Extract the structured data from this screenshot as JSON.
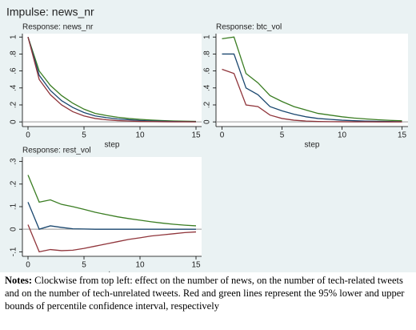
{
  "title": "Impulse: news_nr",
  "chart_data": [
    {
      "type": "line",
      "title": "Response: news_nr",
      "xlabel": "step",
      "x": [
        0,
        1,
        2,
        3,
        4,
        5,
        6,
        7,
        8,
        9,
        10,
        11,
        12,
        13,
        14,
        15
      ],
      "xlim": [
        -0.5,
        15.5
      ],
      "xticks": [
        0,
        5,
        10,
        15
      ],
      "ylim": [
        -0.055,
        1.04
      ],
      "yticks": [
        0,
        {
          "value": 0.2,
          "label": ".2"
        },
        {
          "value": 0.4,
          "label": ".4"
        },
        {
          "value": 0.6,
          "label": ".6"
        },
        {
          "value": 0.8,
          "label": ".8"
        },
        1
      ],
      "series": [
        {
          "color": "#3a7d22",
          "values": [
            1,
            0.6,
            0.43,
            0.31,
            0.22,
            0.15,
            0.1,
            0.075,
            0.055,
            0.04,
            0.03,
            0.022,
            0.016,
            0.011,
            0.008,
            0.006
          ]
        },
        {
          "color": "#1a476f",
          "values": [
            1,
            0.55,
            0.37,
            0.25,
            0.17,
            0.11,
            0.07,
            0.05,
            0.035,
            0.025,
            0.017,
            0.011,
            0.008,
            0.005,
            0.003,
            0.002
          ]
        },
        {
          "color": "#90353b",
          "values": [
            1,
            0.5,
            0.32,
            0.2,
            0.12,
            0.07,
            0.04,
            0.025,
            0.015,
            0.01,
            0.006,
            0.004,
            0.002,
            0.001,
            0.001,
            0.0005
          ]
        }
      ]
    },
    {
      "type": "line",
      "title": "Response: btc_vol",
      "xlabel": "step",
      "x": [
        0,
        1,
        2,
        3,
        4,
        5,
        6,
        7,
        8,
        9,
        10,
        11,
        12,
        13,
        14,
        15
      ],
      "xlim": [
        -0.5,
        15.5
      ],
      "xticks": [
        0,
        5,
        10,
        15
      ],
      "ylim": [
        -0.055,
        1.04
      ],
      "yticks": [
        0,
        {
          "value": 0.2,
          "label": ".2"
        },
        {
          "value": 0.4,
          "label": ".4"
        },
        {
          "value": 0.6,
          "label": ".6"
        },
        {
          "value": 0.8,
          "label": ".8"
        },
        1
      ],
      "series": [
        {
          "color": "#3a7d22",
          "values": [
            0.98,
            1.0,
            0.57,
            0.46,
            0.31,
            0.24,
            0.18,
            0.14,
            0.1,
            0.08,
            0.06,
            0.045,
            0.035,
            0.025,
            0.018,
            0.013
          ]
        },
        {
          "color": "#1a476f",
          "values": [
            0.8,
            0.8,
            0.4,
            0.32,
            0.18,
            0.13,
            0.09,
            0.06,
            0.04,
            0.03,
            0.02,
            0.014,
            0.01,
            0.007,
            0.005,
            0.003
          ]
        },
        {
          "color": "#90353b",
          "values": [
            0.62,
            0.57,
            0.2,
            0.18,
            0.08,
            0.04,
            0.02,
            0.01,
            0.005,
            0.003,
            0.002,
            0.001,
            0.001,
            0,
            0,
            0
          ]
        }
      ]
    },
    {
      "type": "line",
      "title": "Response: rest_vol",
      "xlabel": "step",
      "x": [
        0,
        1,
        2,
        3,
        4,
        5,
        6,
        7,
        8,
        9,
        10,
        11,
        12,
        13,
        14,
        15
      ],
      "xlim": [
        -0.5,
        15.5
      ],
      "xticks": [
        0,
        5,
        10,
        15
      ],
      "ylim": [
        -0.12,
        0.32
      ],
      "yticks": [
        {
          "value": -0.1,
          "label": "-.1"
        },
        0,
        {
          "value": 0.1,
          "label": ".1"
        },
        {
          "value": 0.2,
          "label": ".2"
        },
        {
          "value": 0.3,
          "label": ".3"
        }
      ],
      "series": [
        {
          "color": "#3a7d22",
          "values": [
            0.24,
            0.12,
            0.13,
            0.11,
            0.1,
            0.088,
            0.075,
            0.065,
            0.055,
            0.047,
            0.04,
            0.033,
            0.027,
            0.022,
            0.018,
            0.015
          ]
        },
        {
          "color": "#1a476f",
          "values": [
            0.12,
            0.0,
            0.015,
            0.008,
            0.002,
            0.001,
            0,
            0,
            0,
            0,
            0,
            0,
            0,
            0,
            0,
            0
          ]
        },
        {
          "color": "#90353b",
          "values": [
            0.02,
            -0.1,
            -0.09,
            -0.095,
            -0.093,
            -0.085,
            -0.075,
            -0.065,
            -0.055,
            -0.045,
            -0.038,
            -0.03,
            -0.025,
            -0.02,
            -0.015,
            -0.012
          ]
        }
      ]
    }
  ],
  "notes_label": "Notes:",
  "notes": "Clockwise from top left: effect on the number of news, on the number of tech-related tweets and on the number of tech-unrelated tweets. Red and green lines represent the 95% lower and upper bounds of percentile confidence interval, respectively"
}
